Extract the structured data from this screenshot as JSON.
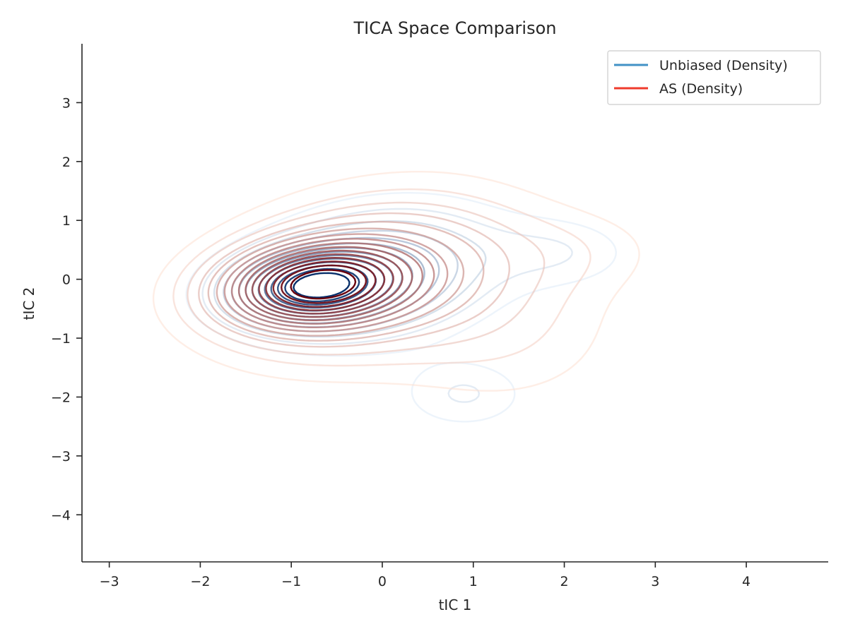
{
  "chart_data": {
    "type": "contour",
    "title": "TICA Space Comparison",
    "xlabel": "tIC 1",
    "ylabel": "tIC 2",
    "xlim": [
      -3.3,
      4.9
    ],
    "ylim": [
      -4.8,
      4.0
    ],
    "xticks": [
      -3,
      -2,
      -1,
      0,
      1,
      2,
      3,
      4
    ],
    "yticks": [
      -4,
      -3,
      -2,
      -1,
      0,
      1,
      2,
      3
    ],
    "xtick_labels": [
      "−3",
      "−2",
      "−1",
      "0",
      "1",
      "2",
      "3",
      "4"
    ],
    "ytick_labels": [
      "−4",
      "−3",
      "−2",
      "−1",
      "0",
      "1",
      "2",
      "3"
    ],
    "grid": false,
    "legend_position": "top-right",
    "series": [
      {
        "name": "Unbiased (Density)",
        "legend_color": "#4292c6",
        "color_light": "#deebf7",
        "color_dark": "#08306b",
        "levels": 14,
        "components": [
          {
            "mx": -0.75,
            "my": -0.12,
            "sx": 0.55,
            "sy": 0.38,
            "rho": 0.15,
            "w": 1.0
          },
          {
            "mx": -0.05,
            "my": 0.1,
            "sx": 0.85,
            "sy": 0.7,
            "rho": 0.2,
            "w": 0.38
          },
          {
            "mx": 1.95,
            "my": 0.45,
            "sx": 0.55,
            "sy": 0.4,
            "rho": 0.0,
            "w": 0.1
          },
          {
            "mx": 0.9,
            "my": -1.95,
            "sx": 0.45,
            "sy": 0.38,
            "rho": 0.0,
            "w": 0.12
          }
        ]
      },
      {
        "name": "AS (Density)",
        "legend_color": "#ef3b2c",
        "color_light": "#fee0d2",
        "color_dark": "#67000d",
        "levels": 16,
        "components": [
          {
            "mx": -0.75,
            "my": -0.1,
            "sx": 0.65,
            "sy": 0.45,
            "rho": 0.15,
            "w": 1.0
          },
          {
            "mx": -0.2,
            "my": 0.05,
            "sx": 1.0,
            "sy": 0.85,
            "rho": 0.25,
            "w": 0.45
          },
          {
            "mx": 1.2,
            "my": -0.6,
            "sx": 0.9,
            "sy": 1.0,
            "rho": -0.1,
            "w": 0.12
          },
          {
            "mx": 2.2,
            "my": 0.5,
            "sx": 0.7,
            "sy": 0.5,
            "rho": 0.0,
            "w": 0.06
          }
        ]
      }
    ]
  }
}
